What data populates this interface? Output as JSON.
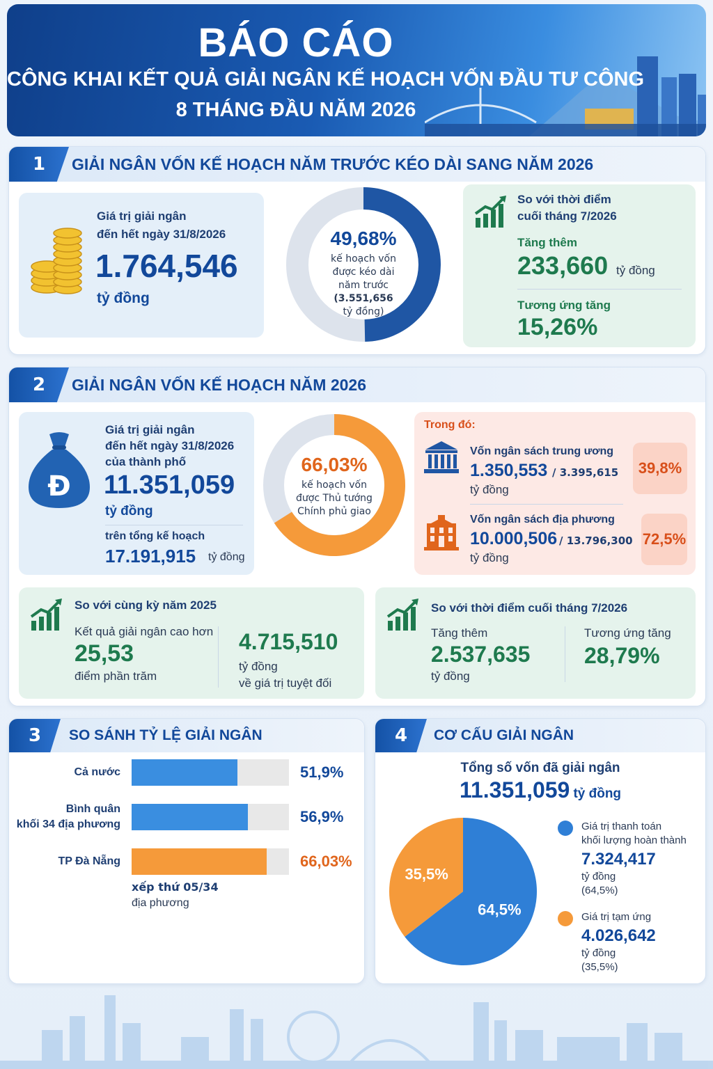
{
  "header": {
    "title": "BÁO CÁO",
    "subtitle_line1": "CÔNG KHAI KẾT QUẢ GIẢI NGÂN KẾ HOẠCH VỐN ĐẦU TƯ CÔNG",
    "subtitle_line2": "8 THÁNG ĐẦU NĂM 2026"
  },
  "section1": {
    "number": "1",
    "title": "GIẢI NGÂN VỐN KẾ HOẠCH NĂM TRƯỚC KÉO DÀI SANG NĂM 2026",
    "value_label_1": "Giá trị giải ngân",
    "value_label_2": "đến hết ngày 31/8/2026",
    "value": "1.764,546",
    "value_unit": "tỷ đồng",
    "donut_percent_text": "49,68%",
    "donut_line1": "kế hoạch vốn",
    "donut_line2": "được kéo dài",
    "donut_line3": "năm trước",
    "donut_line4": "(3.551,656",
    "donut_line5": "tỷ đồng)",
    "compare_label_1": "So với thời điểm",
    "compare_label_2": "cuối tháng 7/2026",
    "increase_label": "Tăng thêm",
    "increase_value": "233,660",
    "increase_unit": "tỷ đồng",
    "rate_label": "Tương ứng tăng",
    "rate_value": "15,26%"
  },
  "section2": {
    "number": "2",
    "title": "GIẢI NGÂN VỐN KẾ HOẠCH NĂM 2026",
    "currency_symbol": "Đ",
    "value_label_1": "Giá trị giải ngân",
    "value_label_2": "đến hết ngày 31/8/2026",
    "value_label_3": "của thành phố",
    "value": "11.351,059",
    "value_unit": "tỷ đồng",
    "plan_label": "trên tổng kế hoạch",
    "plan_value": "17.191,915",
    "plan_unit": "tỷ đồng",
    "donut_percent_text": "66,03%",
    "donut_line1": "kế hoạch vốn",
    "donut_line2": "được Thủ tướng",
    "donut_line3": "Chính phủ giao",
    "detail_heading": "Trong đó:",
    "central_label": "Vốn ngân sách trung ương",
    "central_value": "1.350,553",
    "central_total": "/ 3.395,615",
    "central_unit": "tỷ đồng",
    "central_pct": "39,8%",
    "local_label": "Vốn ngân sách địa phương",
    "local_value": "10.000,506",
    "local_total": "/ 13.796,300",
    "local_unit": "tỷ đồng",
    "local_pct": "72,5%",
    "yoy_title": "So với cùng kỳ năm 2025",
    "yoy_label": "Kết quả giải ngân cao hơn",
    "yoy_points": "25,53",
    "yoy_points_unit": "điểm phần trăm",
    "yoy_abs": "4.715,510",
    "yoy_abs_unit": "tỷ đồng",
    "yoy_abs_note": "về giá trị tuyệt đối",
    "mom_title": "So với thời điểm cuối tháng 7/2026",
    "mom_increase_label": "Tăng thêm",
    "mom_increase_value": "2.537,635",
    "mom_increase_unit": "tỷ đồng",
    "mom_rate_label": "Tương ứng tăng",
    "mom_rate_value": "28,79%"
  },
  "section3": {
    "number": "3",
    "title": "SO SÁNH TỶ LỆ GIẢI NGÂN",
    "rank_line1": "xếp thứ 05/34",
    "rank_line2": "địa phương"
  },
  "section4": {
    "number": "4",
    "title": "CƠ CẤU GIẢI NGÂN",
    "total_label": "Tổng số vốn đã giải ngân",
    "total_value": "11.351,059",
    "total_unit": "tỷ đồng",
    "legend1_line1": "Giá trị thanh toán",
    "legend1_line2": "khối lượng hoàn thành",
    "legend1_value": "7.324,417",
    "legend1_unit": "tỷ đồng",
    "legend1_pct": "(64,5%)",
    "legend2_line1": "Giá trị tạm ứng",
    "legend2_value": "4.026,642",
    "legend2_unit": "tỷ đồng",
    "legend2_pct": "(35,5%)"
  },
  "colors": {
    "navy": "#12489a",
    "blue": "#2f7fd6",
    "orange": "#f59a3a",
    "green": "#1e7a4e",
    "gray": "#dde3ec"
  },
  "chart_data": [
    {
      "type": "pie",
      "chart": "donut-1",
      "labels": [
        "giải ngân",
        "còn lại"
      ],
      "values": [
        49.68,
        50.32
      ]
    },
    {
      "type": "pie",
      "chart": "donut-2",
      "labels": [
        "giải ngân",
        "còn lại"
      ],
      "values": [
        66.03,
        33.97
      ]
    },
    {
      "type": "bar",
      "orientation": "horizontal",
      "categories": [
        "Cả nước",
        "Bình quân khối 34 địa phương",
        "TP Đà Nẵng"
      ],
      "category_lines": [
        [
          "Cả nước"
        ],
        [
          "Bình quân",
          "khối 34 địa phương"
        ],
        [
          "TP Đà Nẵng"
        ]
      ],
      "values": [
        51.9,
        56.9,
        66.03
      ],
      "value_labels": [
        "51,9%",
        "56,9%",
        "66,03%"
      ],
      "xlim": [
        0,
        100
      ],
      "highlight_index": 2
    },
    {
      "type": "pie",
      "labels": [
        "Giá trị thanh toán khối lượng hoàn thành",
        "Giá trị tạm ứng"
      ],
      "values": [
        64.5,
        35.5
      ],
      "value_labels": [
        "64,5%",
        "35,5%"
      ]
    }
  ]
}
